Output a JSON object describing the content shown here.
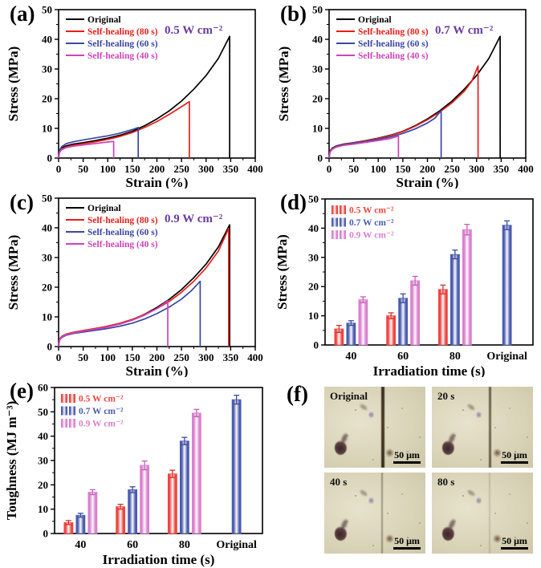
{
  "chart_data": [
    {
      "panel_label": "(a)",
      "type": "line",
      "xlabel": "Strain (%)",
      "ylabel": "Stress (MPa)",
      "xlim": [
        0,
        400
      ],
      "ylim": [
        0,
        50
      ],
      "xtick": 50,
      "xminor": 25,
      "ytick": 10,
      "yminor": 5,
      "annotation": "0.5 W cm⁻²",
      "annotation_color": "#6a3ba1",
      "series": [
        {
          "name": "Original",
          "color": "#000000",
          "points": [
            [
              0,
              0
            ],
            [
              2,
              2.4
            ],
            [
              6,
              3.3
            ],
            [
              15,
              4.1
            ],
            [
              30,
              4.7
            ],
            [
              50,
              5.2
            ],
            [
              75,
              5.9
            ],
            [
              100,
              6.7
            ],
            [
              125,
              7.7
            ],
            [
              150,
              9
            ],
            [
              175,
              10.9
            ],
            [
              200,
              13.2
            ],
            [
              225,
              15.9
            ],
            [
              250,
              19.2
            ],
            [
              275,
              23.2
            ],
            [
              300,
              27.8
            ],
            [
              325,
              33.6
            ],
            [
              348,
              41
            ],
            [
              348,
              0
            ]
          ]
        },
        {
          "name": "Self-healing (80 s)",
          "color": "#e3201b",
          "points": [
            [
              0,
              0
            ],
            [
              2,
              2.1
            ],
            [
              6,
              3
            ],
            [
              15,
              3.7
            ],
            [
              30,
              4.3
            ],
            [
              50,
              4.8
            ],
            [
              75,
              5.5
            ],
            [
              100,
              6.3
            ],
            [
              125,
              7.3
            ],
            [
              150,
              8.6
            ],
            [
              175,
              10.3
            ],
            [
              200,
              12.3
            ],
            [
              225,
              14.7
            ],
            [
              250,
              17.3
            ],
            [
              266,
              19
            ],
            [
              266,
              0
            ]
          ]
        },
        {
          "name": "Self-healing (60 s)",
          "color": "#3a46a3",
          "points": [
            [
              0,
              0
            ],
            [
              2,
              2.6
            ],
            [
              6,
              3.8
            ],
            [
              15,
              4.8
            ],
            [
              30,
              5.5
            ],
            [
              50,
              6.1
            ],
            [
              75,
              6.8
            ],
            [
              100,
              7.5
            ],
            [
              125,
              8.4
            ],
            [
              150,
              9.6
            ],
            [
              162,
              10.3
            ],
            [
              162,
              0
            ]
          ]
        },
        {
          "name": "Self-healing (40 s)",
          "color": "#cc44b8",
          "points": [
            [
              0,
              0
            ],
            [
              2,
              1.9
            ],
            [
              6,
              2.8
            ],
            [
              15,
              3.5
            ],
            [
              30,
              4
            ],
            [
              50,
              4.4
            ],
            [
              75,
              4.9
            ],
            [
              100,
              5.4
            ],
            [
              112,
              5.6
            ],
            [
              112,
              0
            ]
          ]
        }
      ]
    },
    {
      "panel_label": "(b)",
      "type": "line",
      "xlabel": "Strain (%)",
      "ylabel": "Stress (MPa)",
      "xlim": [
        0,
        400
      ],
      "ylim": [
        0,
        50
      ],
      "xtick": 50,
      "xminor": 25,
      "ytick": 10,
      "yminor": 5,
      "annotation": "0.7 W cm⁻²",
      "annotation_color": "#6a3ba1",
      "series": [
        {
          "name": "Original",
          "color": "#000000",
          "points": [
            [
              0,
              0
            ],
            [
              2,
              2.4
            ],
            [
              6,
              3.3
            ],
            [
              15,
              4.1
            ],
            [
              30,
              4.7
            ],
            [
              50,
              5.2
            ],
            [
              75,
              5.9
            ],
            [
              100,
              6.7
            ],
            [
              125,
              7.7
            ],
            [
              150,
              9
            ],
            [
              175,
              10.9
            ],
            [
              200,
              13.2
            ],
            [
              225,
              15.9
            ],
            [
              250,
              19.2
            ],
            [
              275,
              23.2
            ],
            [
              300,
              27.8
            ],
            [
              325,
              33.6
            ],
            [
              348,
              41
            ],
            [
              348,
              0
            ]
          ]
        },
        {
          "name": "Self-healing (80 s)",
          "color": "#e3201b",
          "points": [
            [
              0,
              0
            ],
            [
              2,
              2.3
            ],
            [
              6,
              3.2
            ],
            [
              15,
              4
            ],
            [
              30,
              4.6
            ],
            [
              50,
              5.1
            ],
            [
              75,
              5.8
            ],
            [
              100,
              6.6
            ],
            [
              125,
              7.6
            ],
            [
              150,
              8.9
            ],
            [
              175,
              10.7
            ],
            [
              200,
              12.9
            ],
            [
              225,
              15.5
            ],
            [
              250,
              18.6
            ],
            [
              275,
              22.5
            ],
            [
              290,
              25.8
            ],
            [
              303,
              31
            ],
            [
              303,
              0
            ]
          ]
        },
        {
          "name": "Self-healing (60 s)",
          "color": "#3a46a3",
          "points": [
            [
              0,
              0
            ],
            [
              2,
              2.2
            ],
            [
              6,
              3.1
            ],
            [
              15,
              3.9
            ],
            [
              30,
              4.5
            ],
            [
              50,
              5
            ],
            [
              75,
              5.6
            ],
            [
              100,
              6.3
            ],
            [
              125,
              7.1
            ],
            [
              150,
              8.3
            ],
            [
              175,
              9.8
            ],
            [
              200,
              11.8
            ],
            [
              215,
              13.4
            ],
            [
              228,
              16
            ],
            [
              228,
              0
            ]
          ]
        },
        {
          "name": "Self-healing (40 s)",
          "color": "#cc44b8",
          "points": [
            [
              0,
              0
            ],
            [
              2,
              2
            ],
            [
              6,
              2.9
            ],
            [
              15,
              3.7
            ],
            [
              30,
              4.3
            ],
            [
              50,
              4.7
            ],
            [
              75,
              5.3
            ],
            [
              100,
              5.9
            ],
            [
              125,
              6.6
            ],
            [
              141,
              7.4
            ],
            [
              141,
              0
            ]
          ]
        }
      ]
    },
    {
      "panel_label": "(c)",
      "type": "line",
      "xlabel": "Strain (%)",
      "ylabel": "Stress (MPa)",
      "xlim": [
        0,
        400
      ],
      "ylim": [
        0,
        50
      ],
      "xtick": 50,
      "xminor": 25,
      "ytick": 10,
      "yminor": 5,
      "annotation": "0.9 W cm⁻²",
      "annotation_color": "#6a3ba1",
      "series": [
        {
          "name": "Original",
          "color": "#000000",
          "points": [
            [
              0,
              0
            ],
            [
              2,
              2.4
            ],
            [
              6,
              3.3
            ],
            [
              15,
              4.1
            ],
            [
              30,
              4.7
            ],
            [
              50,
              5.2
            ],
            [
              75,
              5.9
            ],
            [
              100,
              6.7
            ],
            [
              125,
              7.7
            ],
            [
              150,
              9
            ],
            [
              175,
              10.9
            ],
            [
              200,
              13.2
            ],
            [
              225,
              15.9
            ],
            [
              250,
              19.2
            ],
            [
              275,
              23.2
            ],
            [
              300,
              27.8
            ],
            [
              325,
              33.6
            ],
            [
              348,
              41
            ],
            [
              348,
              0
            ]
          ]
        },
        {
          "name": "Self-healing (80 s)",
          "color": "#e3201b",
          "points": [
            [
              0,
              0
            ],
            [
              2,
              2.5
            ],
            [
              6,
              3.4
            ],
            [
              15,
              4.2
            ],
            [
              30,
              4.8
            ],
            [
              50,
              5.4
            ],
            [
              75,
              6.1
            ],
            [
              100,
              6.9
            ],
            [
              125,
              7.9
            ],
            [
              150,
              9.2
            ],
            [
              175,
              10.8
            ],
            [
              200,
              12.8
            ],
            [
              225,
              15.2
            ],
            [
              250,
              18.3
            ],
            [
              275,
              22
            ],
            [
              300,
              26.5
            ],
            [
              325,
              32.2
            ],
            [
              346,
              39.8
            ],
            [
              346,
              0
            ]
          ]
        },
        {
          "name": "Self-healing (60 s)",
          "color": "#3a46a3",
          "points": [
            [
              0,
              0
            ],
            [
              2,
              2.2
            ],
            [
              6,
              3
            ],
            [
              15,
              3.8
            ],
            [
              30,
              4.4
            ],
            [
              50,
              4.9
            ],
            [
              75,
              5.5
            ],
            [
              100,
              6.1
            ],
            [
              125,
              6.9
            ],
            [
              150,
              7.9
            ],
            [
              175,
              9.3
            ],
            [
              200,
              11.1
            ],
            [
              225,
              13.3
            ],
            [
              250,
              16
            ],
            [
              270,
              18.8
            ],
            [
              288,
              22
            ],
            [
              288,
              0
            ]
          ]
        },
        {
          "name": "Self-healing (40 s)",
          "color": "#cc44b8",
          "points": [
            [
              0,
              0
            ],
            [
              2,
              2.3
            ],
            [
              6,
              3.2
            ],
            [
              15,
              4
            ],
            [
              30,
              4.6
            ],
            [
              50,
              5.2
            ],
            [
              75,
              5.9
            ],
            [
              100,
              6.6
            ],
            [
              125,
              7.6
            ],
            [
              150,
              8.9
            ],
            [
              175,
              10.6
            ],
            [
              200,
              12.8
            ],
            [
              222,
              15.4
            ],
            [
              222,
              0
            ]
          ]
        }
      ]
    },
    {
      "panel_label": "(d)",
      "type": "bar",
      "xlabel": "Irradiation time (s)",
      "ylabel": "Stress (MPa)",
      "ylim": [
        0,
        50
      ],
      "ytick": 10,
      "yminor": 5,
      "categories": [
        "40",
        "60",
        "80",
        "Original"
      ],
      "series": [
        {
          "name": "0.5 W cm⁻²",
          "color": "#ee4540",
          "ecolor": "#d2332d",
          "values": [
            5.5,
            10,
            19,
            null
          ],
          "errors": [
            1.2,
            1,
            1.5,
            null
          ]
        },
        {
          "name": "0.7 W cm⁻²",
          "color": "#4a5cb0",
          "ecolor": "#3a4a9e",
          "values": [
            7.5,
            16,
            31,
            41
          ],
          "errors": [
            0.8,
            1.5,
            1.5,
            1.5
          ]
        },
        {
          "name": "0.9 W cm⁻²",
          "color": "#da80ce",
          "ecolor": "#c55fb6",
          "values": [
            15.5,
            22,
            39.5,
            null
          ],
          "errors": [
            1,
            1.5,
            1.8,
            null
          ]
        }
      ]
    },
    {
      "panel_label": "(e)",
      "type": "bar",
      "xlabel": "Irradiation time (s)",
      "ylabel": "Toughness (MJ m⁻³)",
      "ylim": [
        0,
        60
      ],
      "ytick": 10,
      "yminor": 5,
      "categories": [
        "40",
        "60",
        "80",
        "Original"
      ],
      "series": [
        {
          "name": "0.5 W cm⁻²",
          "color": "#ee4540",
          "ecolor": "#d2332d",
          "values": [
            4.5,
            11,
            24.5,
            null
          ],
          "errors": [
            0.8,
            1,
            1.5,
            null
          ]
        },
        {
          "name": "0.7 W cm⁻²",
          "color": "#4a5cb0",
          "ecolor": "#3a4a9e",
          "values": [
            7.5,
            18,
            38,
            55
          ],
          "errors": [
            0.8,
            1.2,
            1.5,
            1.8
          ]
        },
        {
          "name": "0.9 W cm⁻²",
          "color": "#da80ce",
          "ecolor": "#c55fb6",
          "values": [
            17,
            28,
            49.5,
            null
          ],
          "errors": [
            1,
            1.8,
            1.5,
            null
          ]
        }
      ]
    },
    {
      "panel_label": "(f)",
      "type": "micrographs",
      "scale_label": "50 μm",
      "bg_light": "#e7e2cc",
      "bg_mid": "#dad4b9",
      "bg_dark": "#cec7a9",
      "crack_color": "#3a2f1f",
      "tiles": [
        {
          "label": "Original",
          "crack_opacity": 1,
          "crack_width": 4
        },
        {
          "label": "20 s",
          "crack_opacity": 0.7,
          "crack_width": 3
        },
        {
          "label": "40 s",
          "crack_opacity": 0.42,
          "crack_width": 2.5
        },
        {
          "label": "80 s",
          "crack_opacity": 0.16,
          "crack_width": 2
        }
      ]
    }
  ]
}
